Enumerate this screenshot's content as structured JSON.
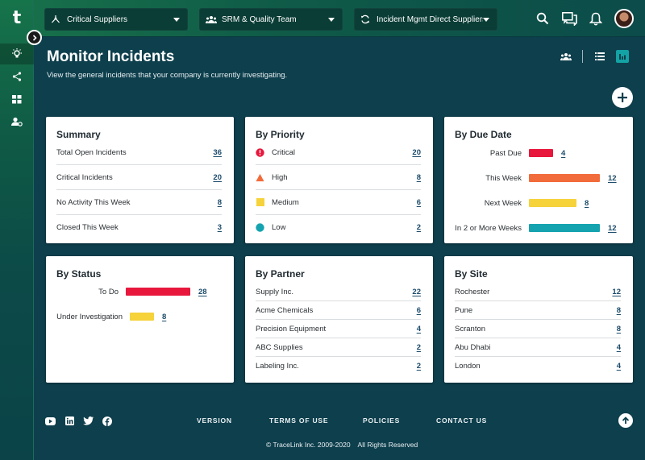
{
  "app": {
    "logo_letter": "t"
  },
  "topbar": {
    "filters": [
      {
        "label": "Critical Suppliers",
        "icon": "network-icon"
      },
      {
        "label": "SRM & Quality Team",
        "icon": "team-icon"
      },
      {
        "label": "Incident Mgmt Direct Suppliers",
        "icon": "sync-icon"
      }
    ],
    "icons": [
      "search-icon",
      "chat-icon",
      "bell-icon",
      "avatar"
    ]
  },
  "rail": {
    "items": [
      "lightbulb-icon",
      "share-icon",
      "grid-icon",
      "user-settings-icon"
    ]
  },
  "header": {
    "title": "Monitor Incidents",
    "subtitle": "View the general incidents that your company is currently investigating."
  },
  "summary": {
    "title": "Summary",
    "rows": [
      {
        "label": "Total Open Incidents",
        "value": "36"
      },
      {
        "label": "Critical Incidents",
        "value": "20"
      },
      {
        "label": "No Activity This Week",
        "value": "8"
      },
      {
        "label": "Closed This Week",
        "value": "3"
      }
    ]
  },
  "priority": {
    "title": "By Priority",
    "rows": [
      {
        "label": "Critical",
        "value": "20",
        "icon": "critical-icon",
        "color": "#e8173c"
      },
      {
        "label": "High",
        "value": "8",
        "icon": "high-icon",
        "color": "#f26b3a"
      },
      {
        "label": "Medium",
        "value": "6",
        "icon": "medium-icon",
        "color": "#f6d23b"
      },
      {
        "label": "Low",
        "value": "2",
        "icon": "low-icon",
        "color": "#15a3b0"
      }
    ]
  },
  "due_date": {
    "title": "By Due Date",
    "rows": [
      {
        "label": "Past Due",
        "value": "4",
        "color": "#e8173c"
      },
      {
        "label": "This Week",
        "value": "12",
        "color": "#f26b3a"
      },
      {
        "label": "Next Week",
        "value": "8",
        "color": "#f6d23b"
      },
      {
        "label": "In 2 or More Weeks",
        "value": "12",
        "color": "#15a3b0"
      }
    ]
  },
  "status": {
    "title": "By Status",
    "rows": [
      {
        "label": "To Do",
        "value": "28",
        "color": "#e8173c"
      },
      {
        "label": "Under Investigation",
        "value": "8",
        "color": "#f6d23b"
      }
    ]
  },
  "partner": {
    "title": "By Partner",
    "rows": [
      {
        "label": "Supply Inc.",
        "value": "22"
      },
      {
        "label": "Acme Chemicals",
        "value": "6"
      },
      {
        "label": "Precision Equipment",
        "value": "4"
      },
      {
        "label": "ABC Supplies",
        "value": "2"
      },
      {
        "label": "Labeling Inc.",
        "value": "2"
      }
    ]
  },
  "site": {
    "title": "By Site",
    "rows": [
      {
        "label": "Rochester",
        "value": "12"
      },
      {
        "label": "Pune",
        "value": "8"
      },
      {
        "label": "Scranton",
        "value": "8"
      },
      {
        "label": "Abu Dhabi",
        "value": "4"
      },
      {
        "label": "London",
        "value": "4"
      }
    ]
  },
  "footer": {
    "social": [
      "youtube-icon",
      "linkedin-icon",
      "twitter-icon",
      "facebook-icon"
    ],
    "links": [
      "VERSION",
      "TERMS OF USE",
      "POLICIES",
      "CONTACT US"
    ],
    "copyright": "© TraceLink Inc. 2009-2020    All Rights Reserved"
  },
  "colors": {
    "background": "#0e3f4d",
    "accent_green": "#176f4a",
    "link": "#1c4b6b"
  }
}
